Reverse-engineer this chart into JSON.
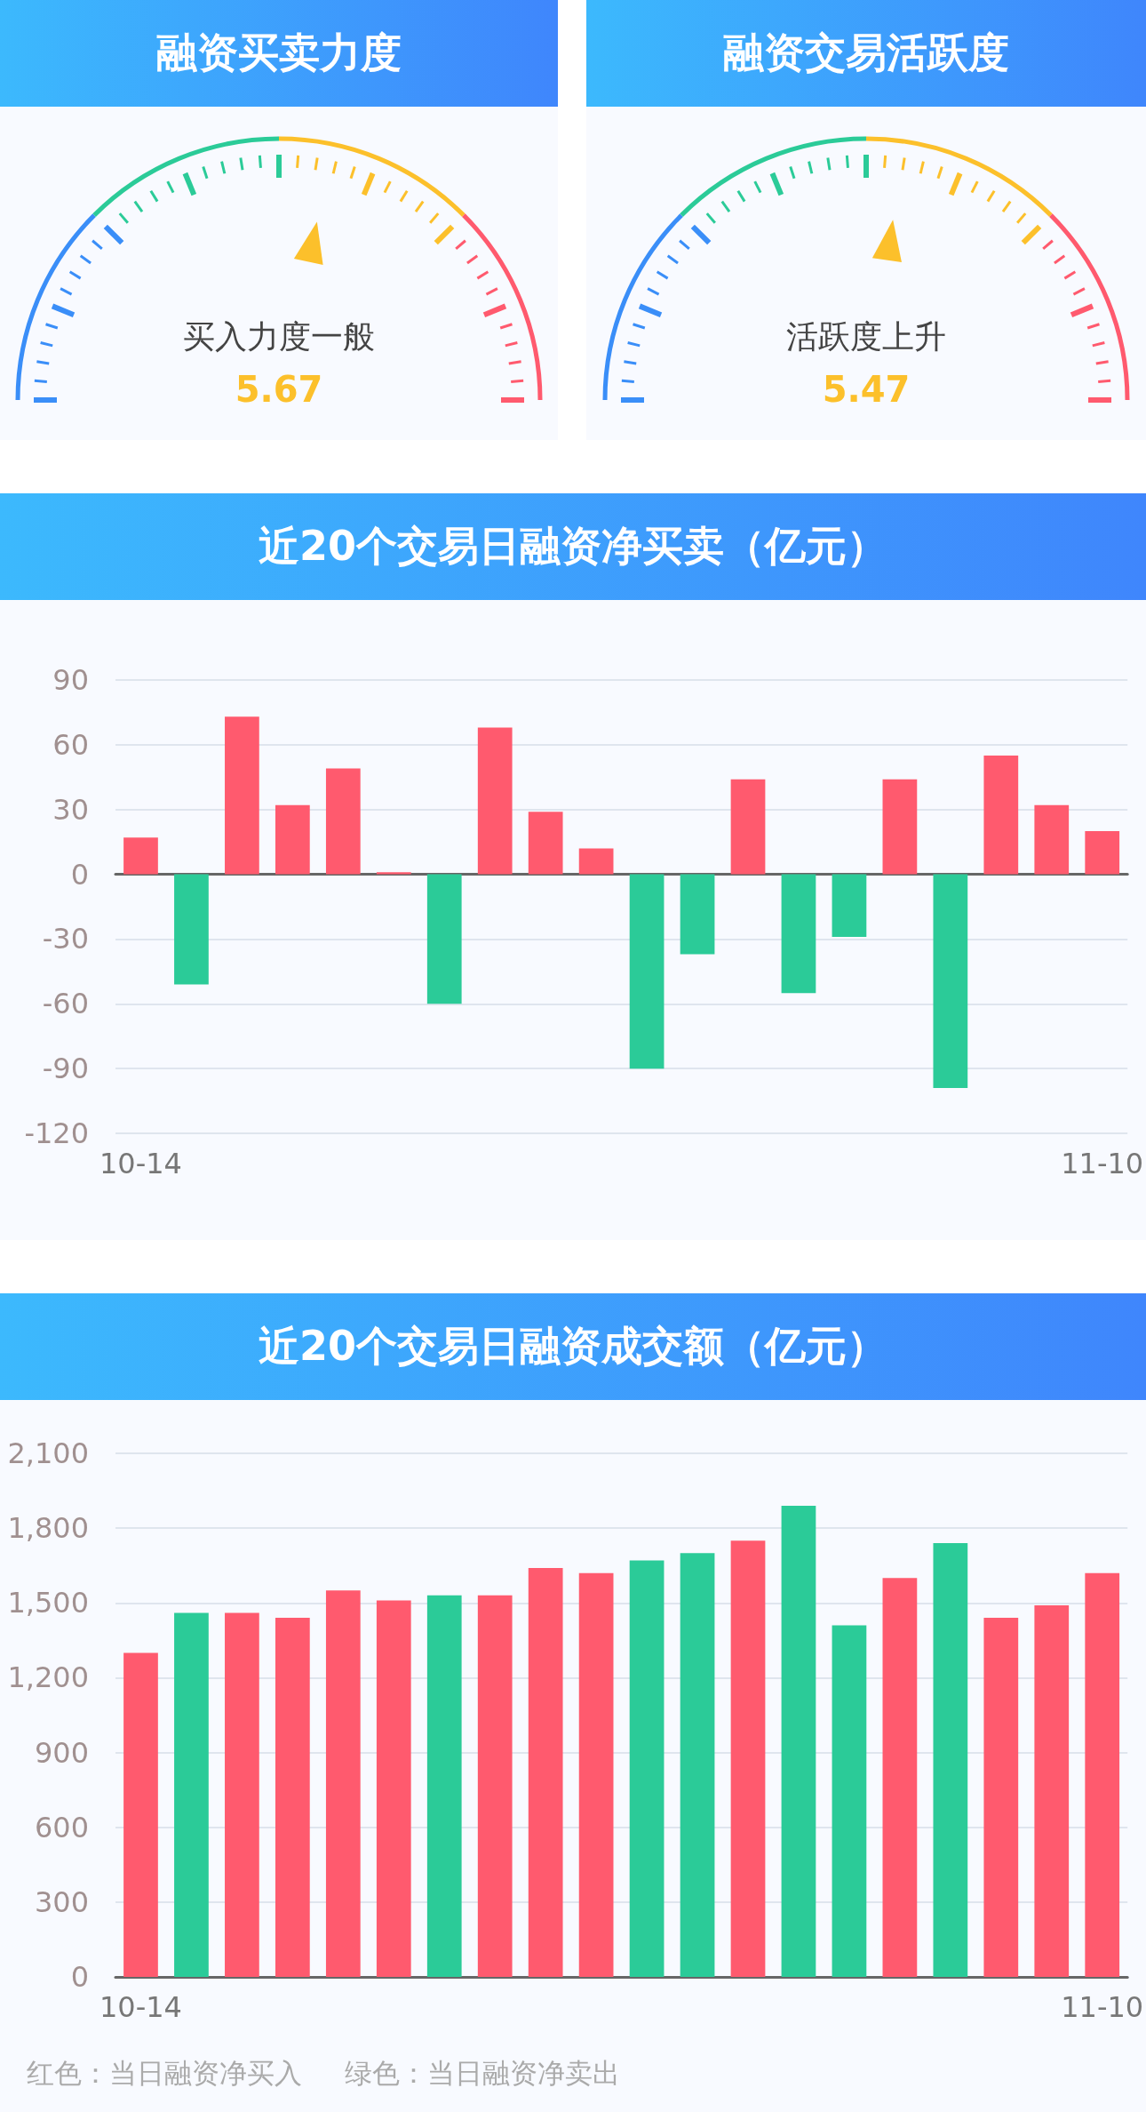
{
  "chart_data": [
    {
      "type": "other",
      "title": "融资买卖力度",
      "values": [
        5.67
      ],
      "value_labels": [
        "5.67"
      ],
      "annotations": [
        "买入力度一般"
      ]
    },
    {
      "type": "other",
      "title": "融资交易活跃度",
      "values": [
        5.47
      ],
      "value_labels": [
        "5.47"
      ],
      "annotations": [
        "活跃度上升"
      ]
    },
    {
      "type": "bar",
      "title": "近20个交易日融资净买卖（亿元）",
      "categories": [
        "10-14",
        null,
        null,
        null,
        null,
        null,
        null,
        null,
        null,
        null,
        null,
        null,
        null,
        null,
        null,
        null,
        null,
        null,
        null,
        "11-10"
      ],
      "values": [
        17,
        -51,
        73,
        32,
        49,
        1,
        -60,
        68,
        29,
        12,
        -90,
        -37,
        44,
        -55,
        -29,
        44,
        -99,
        55,
        32,
        20
      ],
      "colors": [
        "#ff5a6e",
        "#2bcb98",
        "#ff5a6e",
        "#ff5a6e",
        "#ff5a6e",
        "#ff5a6e",
        "#2bcb98",
        "#ff5a6e",
        "#ff5a6e",
        "#ff5a6e",
        "#2bcb98",
        "#2bcb98",
        "#ff5a6e",
        "#2bcb98",
        "#2bcb98",
        "#ff5a6e",
        "#2bcb98",
        "#ff5a6e",
        "#ff5a6e",
        "#ff5a6e"
      ],
      "ylim": [
        -120,
        90
      ],
      "yticks": [
        -120,
        -90,
        -60,
        -30,
        0,
        30,
        60,
        90
      ],
      "grid": "y"
    },
    {
      "type": "bar",
      "title": "近20个交易日融资成交额（亿元）",
      "categories": [
        "10-14",
        null,
        null,
        null,
        null,
        null,
        null,
        null,
        null,
        null,
        null,
        null,
        null,
        null,
        null,
        null,
        null,
        null,
        null,
        "11-10"
      ],
      "values": [
        1300,
        1460,
        1460,
        1440,
        1550,
        1510,
        1530,
        1530,
        1640,
        1620,
        1670,
        1700,
        1750,
        1890,
        1410,
        1600,
        1740,
        1440,
        1490,
        1620
      ],
      "colors": [
        "#ff5a6e",
        "#2bcb98",
        "#ff5a6e",
        "#ff5a6e",
        "#ff5a6e",
        "#ff5a6e",
        "#2bcb98",
        "#ff5a6e",
        "#ff5a6e",
        "#ff5a6e",
        "#2bcb98",
        "#2bcb98",
        "#ff5a6e",
        "#2bcb98",
        "#2bcb98",
        "#ff5a6e",
        "#2bcb98",
        "#ff5a6e",
        "#ff5a6e",
        "#ff5a6e"
      ],
      "ylim": [
        0,
        2100
      ],
      "yticks": [
        0,
        300,
        600,
        900,
        {
          "value": 1200,
          "label": "1,200"
        },
        {
          "value": 1500,
          "label": "1,500"
        },
        {
          "value": 1800,
          "label": "1,800"
        },
        {
          "value": 2100,
          "label": "2,100"
        }
      ],
      "grid": "y",
      "annotations": [
        "红色：当日融资净买入",
        "绿色：当日融资净卖出"
      ]
    }
  ]
}
